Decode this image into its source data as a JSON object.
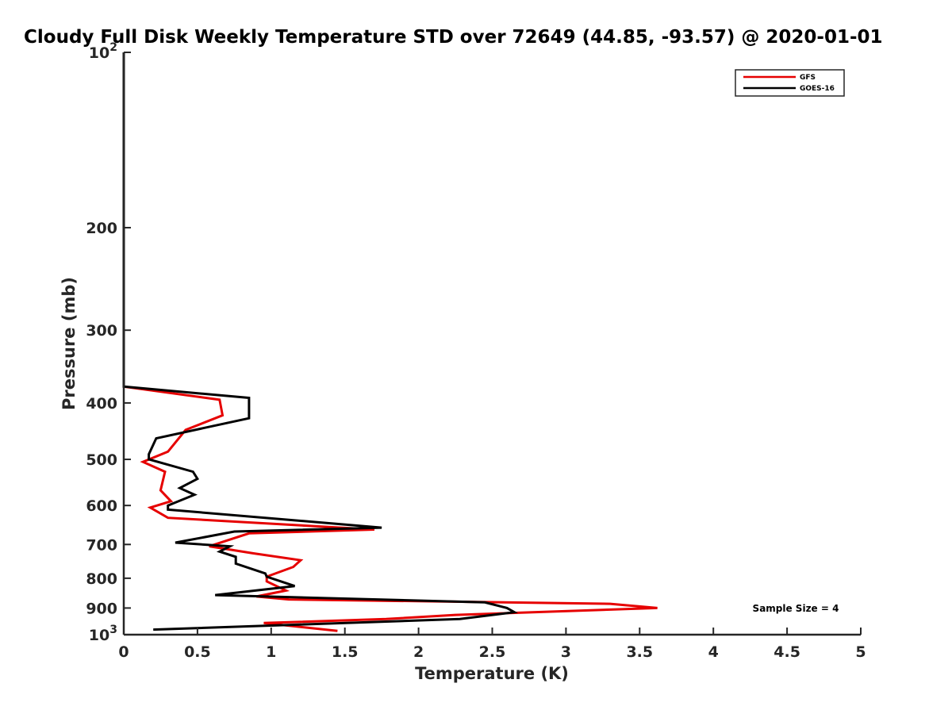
{
  "chart_data": {
    "type": "line",
    "title": "Cloudy Full Disk Weekly Temperature STD over 72649 (44.85, -93.57) @ 2020-01-01",
    "xlabel": "Temperature (K)",
    "ylabel": "Pressure (mb)",
    "xlim": [
      0,
      5
    ],
    "ylim": [
      1000,
      100
    ],
    "yscale": "log",
    "y_reversed": true,
    "x_ticks": [
      "0",
      "0.5",
      "1",
      "1.5",
      "2",
      "2.5",
      "3",
      "3.5",
      "4",
      "4.5",
      "5"
    ],
    "y_ticks": [
      {
        "value": 100,
        "base": "10",
        "exp": "2"
      },
      {
        "value": 200,
        "label": "200"
      },
      {
        "value": 300,
        "label": "300"
      },
      {
        "value": 400,
        "label": "400"
      },
      {
        "value": 500,
        "label": "500"
      },
      {
        "value": 600,
        "label": "600"
      },
      {
        "value": 700,
        "label": "700"
      },
      {
        "value": 800,
        "label": "800"
      },
      {
        "value": 900,
        "label": "900"
      },
      {
        "value": 1000,
        "base": "10",
        "exp": "3"
      }
    ],
    "grid": false,
    "legend_position": "top-right",
    "annotation": "Sample Size = 4",
    "series": [
      {
        "name": "GFS",
        "color": "#e60000",
        "x": [
          0.0,
          0.0,
          0.65,
          0.67,
          0.42,
          0.3,
          0.13,
          0.28,
          0.25,
          0.32,
          0.18,
          0.3,
          1.7,
          0.85,
          0.58,
          0.88,
          1.2,
          1.15,
          0.97,
          0.97,
          1.1,
          0.9,
          1.12,
          3.3,
          3.62,
          2.25,
          1.78,
          0.95,
          1.45
        ],
        "y": [
          100,
          375,
          395,
          420,
          445,
          485,
          505,
          525,
          565,
          590,
          605,
          630,
          660,
          670,
          705,
          725,
          745,
          765,
          795,
          810,
          840,
          860,
          870,
          885,
          900,
          925,
          940,
          955,
          985
        ]
      },
      {
        "name": "GOES-16",
        "color": "#000000",
        "x": [
          0.0,
          0.0,
          0.85,
          0.85,
          0.22,
          0.17,
          0.17,
          0.47,
          0.5,
          0.38,
          0.48,
          0.3,
          0.3,
          1.75,
          0.75,
          0.35,
          0.72,
          0.65,
          0.76,
          0.76,
          0.96,
          0.97,
          1.16,
          0.62,
          2.45,
          2.6,
          2.65,
          2.28,
          0.2
        ],
        "y": [
          100,
          375,
          392,
          425,
          460,
          490,
          500,
          525,
          540,
          560,
          575,
          600,
          610,
          655,
          665,
          695,
          705,
          720,
          735,
          755,
          785,
          795,
          825,
          855,
          880,
          900,
          915,
          940,
          980
        ]
      }
    ]
  }
}
